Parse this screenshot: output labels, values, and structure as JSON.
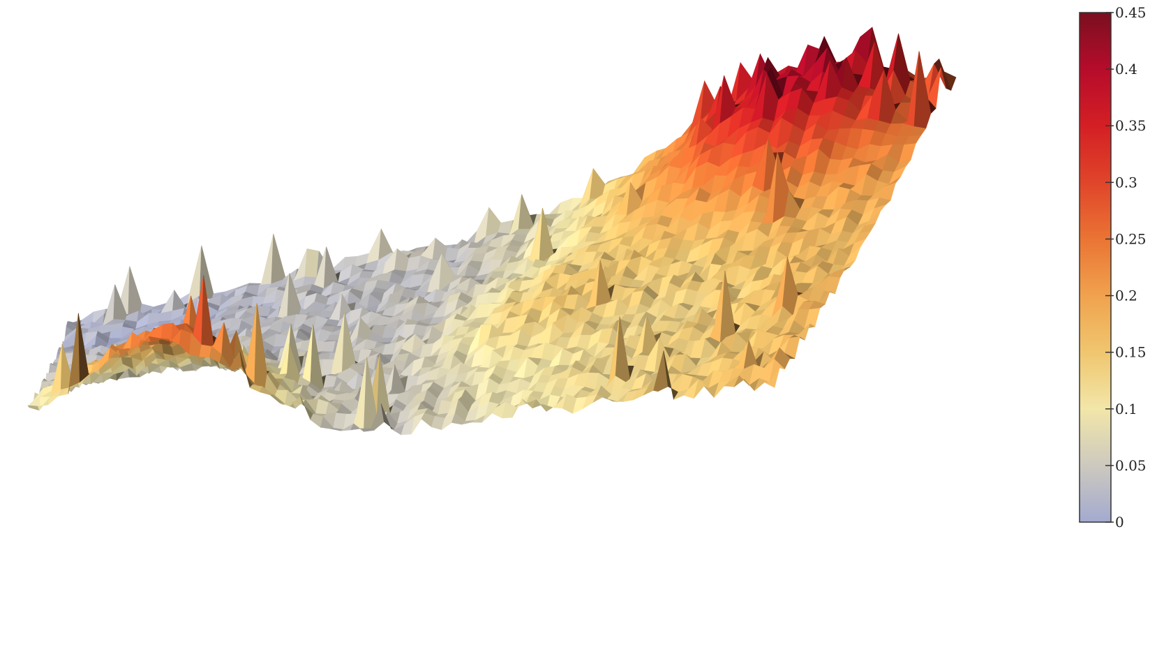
{
  "chart_data": {
    "type": "heatmap",
    "render": "3d-surface",
    "title": "",
    "xlabel": "",
    "ylabel": "",
    "zlabel": "",
    "colorbar": {
      "min": 0,
      "max": 0.45,
      "ticks": [
        0,
        0.05,
        0.1,
        0.15,
        0.2,
        0.25,
        0.3,
        0.35,
        0.4,
        0.45
      ],
      "tick_labels": [
        "0",
        "0.05",
        "0.1",
        "0.15",
        "0.2",
        "0.25",
        "0.3",
        "0.35",
        "0.4",
        "0.45"
      ],
      "colormap": [
        {
          "value": 0,
          "color": "#a3aacf"
        },
        {
          "value": 0.05,
          "color": "#cdc9bf"
        },
        {
          "value": 0.1,
          "color": "#f2e6a8"
        },
        {
          "value": 0.15,
          "color": "#f0c66f"
        },
        {
          "value": 0.2,
          "color": "#f0a24e"
        },
        {
          "value": 0.25,
          "color": "#ea7434"
        },
        {
          "value": 0.3,
          "color": "#e0452a"
        },
        {
          "value": 0.35,
          "color": "#d41f24"
        },
        {
          "value": 0.4,
          "color": "#b60c2b"
        },
        {
          "value": 0.45,
          "color": "#7a0f1f"
        }
      ],
      "placement": "right"
    },
    "z_range": [
      0,
      0.45
    ],
    "grid": false,
    "legend": "none",
    "shading": "lit"
  }
}
